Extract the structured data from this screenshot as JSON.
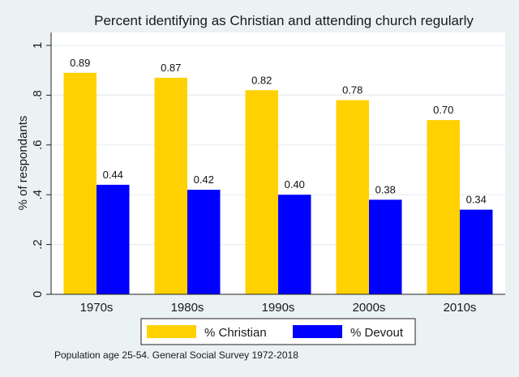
{
  "chart_data": {
    "type": "bar",
    "title": "Percent identifying as Christian and attending church regularly",
    "xlabel": "",
    "ylabel": "% of respondants",
    "categories": [
      "1970s",
      "1980s",
      "1990s",
      "2000s",
      "2010s"
    ],
    "series": [
      {
        "name": "% Christian",
        "color": "#ffd100",
        "values": [
          0.89,
          0.87,
          0.82,
          0.78,
          0.7
        ],
        "labels": [
          "0.89",
          "0.87",
          "0.82",
          "0.78",
          "0.70"
        ]
      },
      {
        "name": "% Devout",
        "color": "#0000ff",
        "values": [
          0.44,
          0.42,
          0.4,
          0.38,
          0.34
        ],
        "labels": [
          "0.44",
          "0.42",
          "0.40",
          "0.38",
          "0.34"
        ]
      }
    ],
    "ylim": [
      0,
      1
    ],
    "yticks": [
      0,
      0.2,
      0.4,
      0.6,
      0.8,
      1
    ],
    "ytick_labels": [
      "0",
      ".2",
      ".4",
      ".6",
      ".8",
      "1"
    ],
    "grid": true,
    "legend_position": "bottom",
    "note": "Population age 25-54. General Social Survey 1972-2018"
  }
}
